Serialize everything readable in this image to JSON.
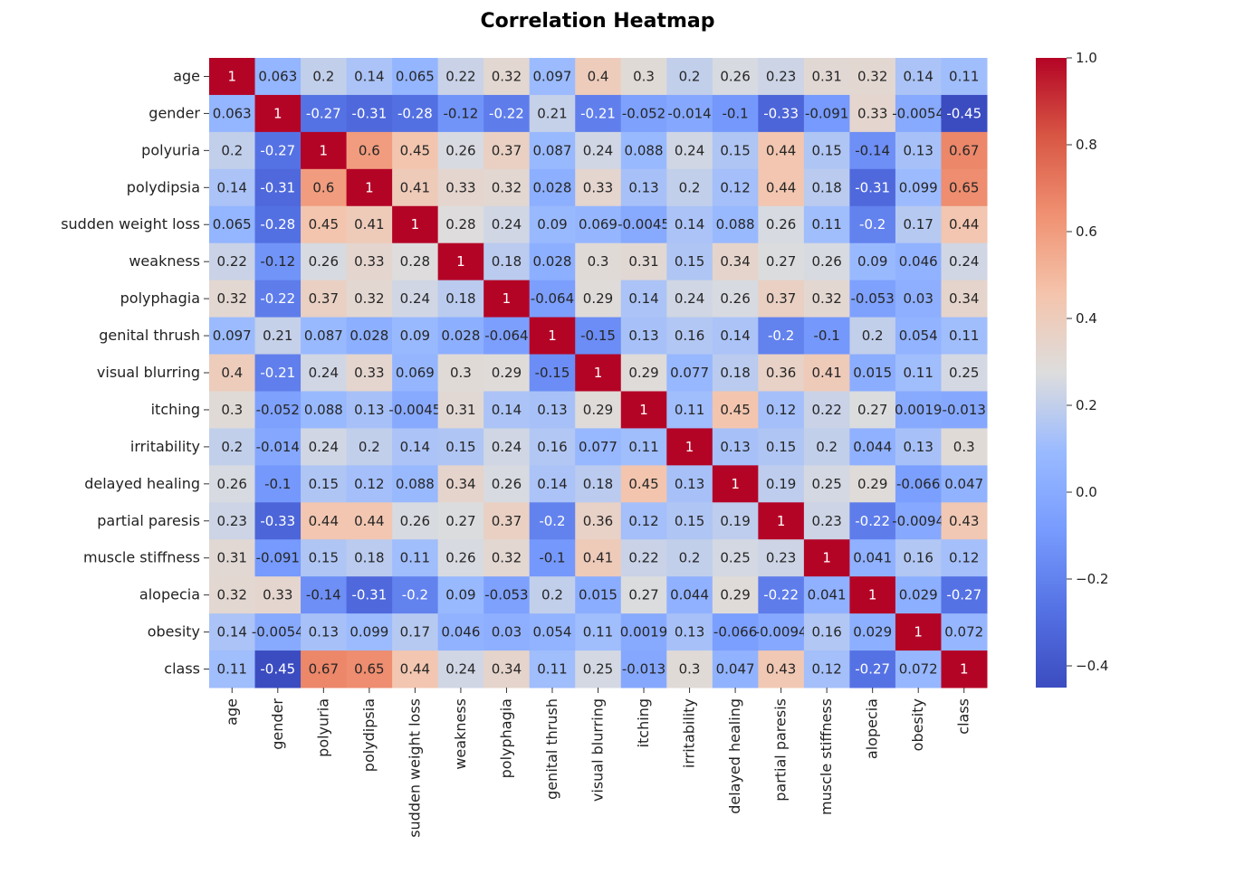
{
  "chart_data": {
    "type": "heatmap",
    "title": "Correlation Heatmap",
    "xlabel": "",
    "ylabel": "",
    "colormap": "coolwarm",
    "vmin": -0.45,
    "vmax": 1.0,
    "labels": [
      "age",
      "gender",
      "polyuria",
      "polydipsia",
      "sudden weight loss",
      "weakness",
      "polyphagia",
      "genital thrush",
      "visual blurring",
      "itching",
      "irritability",
      "delayed healing",
      "partial paresis",
      "muscle stiffness",
      "alopecia",
      "obesity",
      "class"
    ],
    "values": [
      [
        1,
        0.063,
        0.2,
        0.14,
        0.065,
        0.22,
        0.32,
        0.097,
        0.4,
        0.3,
        0.2,
        0.26,
        0.23,
        0.31,
        0.32,
        0.14,
        0.11
      ],
      [
        0.063,
        1,
        -0.27,
        -0.31,
        -0.28,
        -0.12,
        -0.22,
        0.21,
        -0.21,
        -0.052,
        -0.014,
        -0.1,
        -0.33,
        -0.091,
        0.33,
        -0.0054,
        -0.45
      ],
      [
        0.2,
        -0.27,
        1,
        0.6,
        0.45,
        0.26,
        0.37,
        0.087,
        0.24,
        0.088,
        0.24,
        0.15,
        0.44,
        0.15,
        -0.14,
        0.13,
        0.67
      ],
      [
        0.14,
        -0.31,
        0.6,
        1,
        0.41,
        0.33,
        0.32,
        0.028,
        0.33,
        0.13,
        0.2,
        0.12,
        0.44,
        0.18,
        -0.31,
        0.099,
        0.65
      ],
      [
        0.065,
        -0.28,
        0.45,
        0.41,
        1,
        0.28,
        0.24,
        0.09,
        0.069,
        -0.0045,
        0.14,
        0.088,
        0.26,
        0.11,
        -0.2,
        0.17,
        0.44
      ],
      [
        0.22,
        -0.12,
        0.26,
        0.33,
        0.28,
        1,
        0.18,
        0.028,
        0.3,
        0.31,
        0.15,
        0.34,
        0.27,
        0.26,
        0.09,
        0.046,
        0.24
      ],
      [
        0.32,
        -0.22,
        0.37,
        0.32,
        0.24,
        0.18,
        1,
        -0.064,
        0.29,
        0.14,
        0.24,
        0.26,
        0.37,
        0.32,
        -0.053,
        0.03,
        0.34
      ],
      [
        0.097,
        0.21,
        0.087,
        0.028,
        0.09,
        0.028,
        -0.064,
        1,
        -0.15,
        0.13,
        0.16,
        0.14,
        -0.2,
        -0.1,
        0.2,
        0.054,
        0.11
      ],
      [
        0.4,
        -0.21,
        0.24,
        0.33,
        0.069,
        0.3,
        0.29,
        -0.15,
        1,
        0.29,
        0.077,
        0.18,
        0.36,
        0.41,
        0.015,
        0.11,
        0.25
      ],
      [
        0.3,
        -0.052,
        0.088,
        0.13,
        -0.0045,
        0.31,
        0.14,
        0.13,
        0.29,
        1,
        0.11,
        0.45,
        0.12,
        0.22,
        0.27,
        0.0019,
        -0.013
      ],
      [
        0.2,
        -0.014,
        0.24,
        0.2,
        0.14,
        0.15,
        0.24,
        0.16,
        0.077,
        0.11,
        1,
        0.13,
        0.15,
        0.2,
        0.044,
        0.13,
        0.3
      ],
      [
        0.26,
        -0.1,
        0.15,
        0.12,
        0.088,
        0.34,
        0.26,
        0.14,
        0.18,
        0.45,
        0.13,
        1,
        0.19,
        0.25,
        0.29,
        -0.066,
        0.047
      ],
      [
        0.23,
        -0.33,
        0.44,
        0.44,
        0.26,
        0.27,
        0.37,
        -0.2,
        0.36,
        0.12,
        0.15,
        0.19,
        1,
        0.23,
        -0.22,
        -0.0094,
        0.43
      ],
      [
        0.31,
        -0.091,
        0.15,
        0.18,
        0.11,
        0.26,
        0.32,
        -0.1,
        0.41,
        0.22,
        0.2,
        0.25,
        0.23,
        1,
        0.041,
        0.16,
        0.12
      ],
      [
        0.32,
        0.33,
        -0.14,
        -0.31,
        -0.2,
        0.09,
        -0.053,
        0.2,
        0.015,
        0.27,
        0.044,
        0.29,
        -0.22,
        0.041,
        1,
        0.029,
        -0.27
      ],
      [
        0.14,
        -0.0054,
        0.13,
        0.099,
        0.17,
        0.046,
        0.03,
        0.054,
        0.11,
        0.0019,
        0.13,
        -0.066,
        -0.0094,
        0.16,
        0.029,
        1,
        0.072
      ],
      [
        0.11,
        -0.45,
        0.67,
        0.65,
        0.44,
        0.24,
        0.34,
        0.11,
        0.25,
        -0.013,
        0.3,
        0.047,
        0.43,
        0.12,
        -0.27,
        0.072,
        1
      ]
    ],
    "colorbar": {
      "ticks": [
        1.0,
        0.8,
        0.6,
        0.4,
        0.2,
        0.0,
        -0.2,
        -0.4
      ],
      "tick_labels": [
        "1.0",
        "0.8",
        "0.6",
        "0.4",
        "0.2",
        "0.0",
        "−0.2",
        "−0.4"
      ]
    }
  }
}
